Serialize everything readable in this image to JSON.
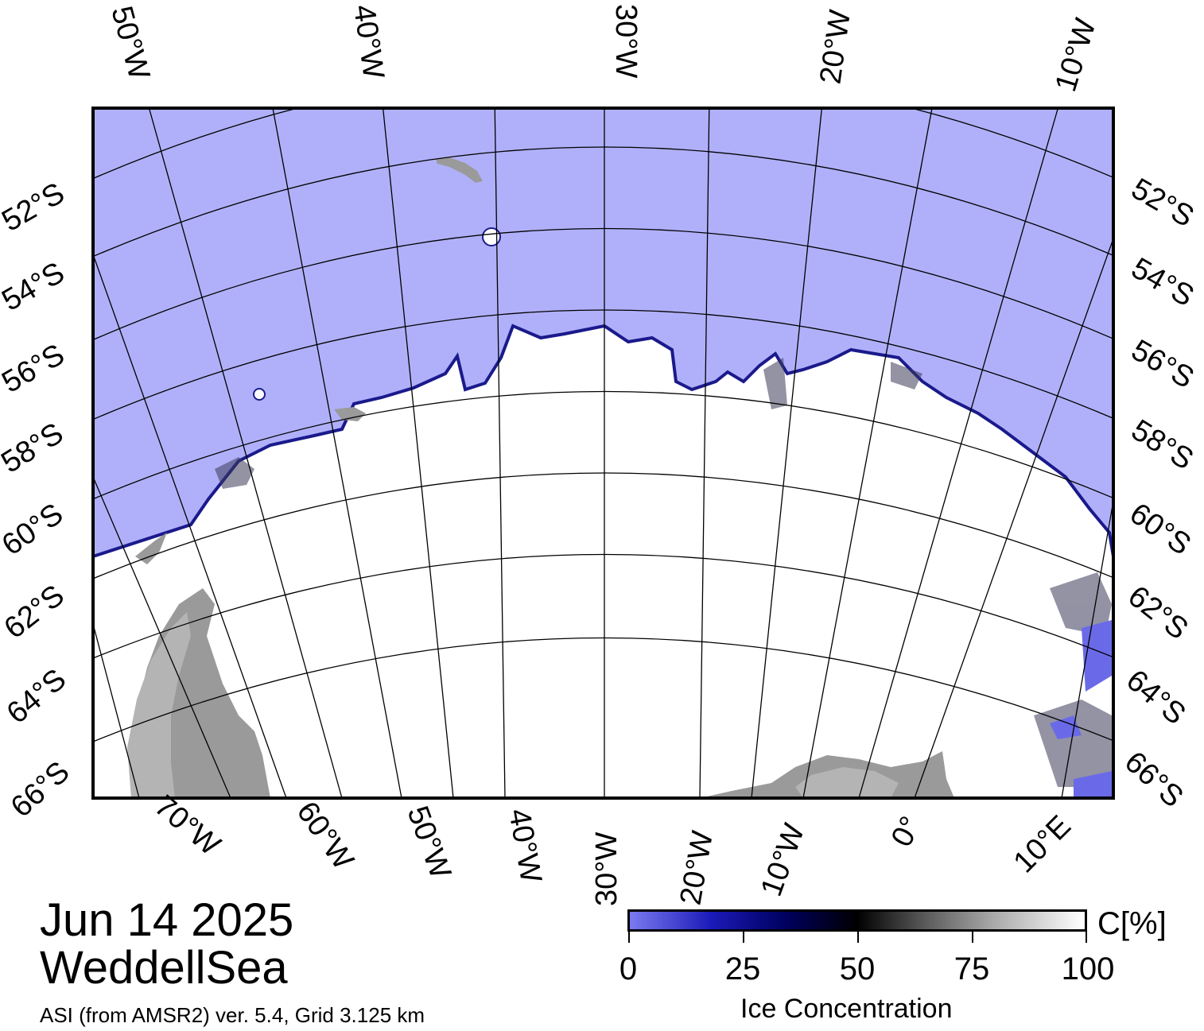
{
  "map": {
    "date": "Jun 14 2025",
    "region": "WeddellSea",
    "product": "ASI (from AMSR2) ver. 5.4,  Grid 3.125 km",
    "colors": {
      "ocean": "#b0b0fa",
      "ice": "#ffffff",
      "land": "#9a9a9a",
      "land_light": "#b4b4b4",
      "ice_edge": "#1a1a8c",
      "graticule": "#000000"
    },
    "top_longitude_labels": [
      "50°W",
      "40°W",
      "30°W",
      "20°W",
      "10°W"
    ],
    "bottom_longitude_labels": [
      "70°W",
      "60°W",
      "50°W",
      "40°W",
      "30°W",
      "20°W",
      "10°W",
      "0°",
      "10°E"
    ],
    "left_latitude_labels": [
      "52°S",
      "54°S",
      "56°S",
      "58°S",
      "60°S",
      "62°S",
      "64°S",
      "66°S"
    ],
    "right_latitude_labels": [
      "52°S",
      "54°S",
      "56°S",
      "58°S",
      "60°S",
      "62°S",
      "64°S",
      "66°S"
    ]
  },
  "legend": {
    "title": "Ice Concentration",
    "unit": "C[%]",
    "ticks": [
      "0",
      "25",
      "50",
      "75",
      "100"
    ],
    "colormap": [
      {
        "value": 0,
        "color": "#7a7af0"
      },
      {
        "value": 50,
        "color": "#000000"
      },
      {
        "value": 100,
        "color": "#ffffff"
      }
    ]
  }
}
